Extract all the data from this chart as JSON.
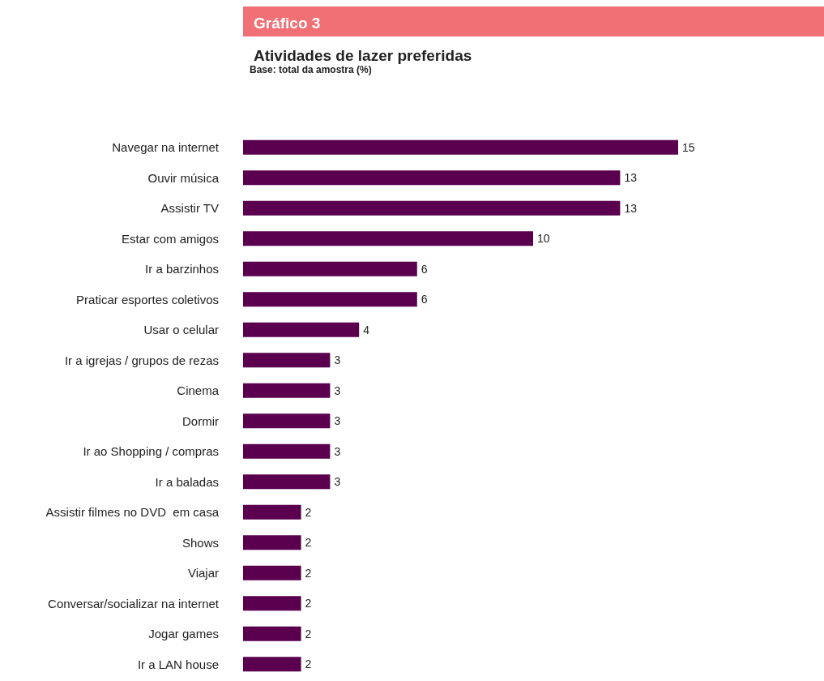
{
  "chart_data": {
    "type": "bar",
    "orientation": "horizontal",
    "title": "Gráfico 3",
    "subtitle": "Atividades de lazer preferidas",
    "annotations": [
      "Base: total da amostra (%)"
    ],
    "categories": [
      "Navegar na internet",
      "Ouvir música",
      "Assistir TV",
      "Estar com amigos",
      "Ir a barzinhos",
      "Praticar esportes coletivos",
      "Usar o celular",
      "Ir a igrejas / grupos de rezas",
      "Cinema",
      "Dormir",
      "Ir ao Shopping / compras",
      "Ir a baladas",
      "Assistir filmes no DVD  em casa",
      "Shows",
      "Viajar",
      "Conversar/socializar na internet",
      "Jogar games",
      "Ir a LAN house"
    ],
    "values": [
      15,
      13,
      13,
      10,
      6,
      6,
      4,
      3,
      3,
      3,
      3,
      3,
      2,
      2,
      2,
      2,
      2,
      2
    ],
    "color": "#5a004f",
    "data_labels": true
  }
}
